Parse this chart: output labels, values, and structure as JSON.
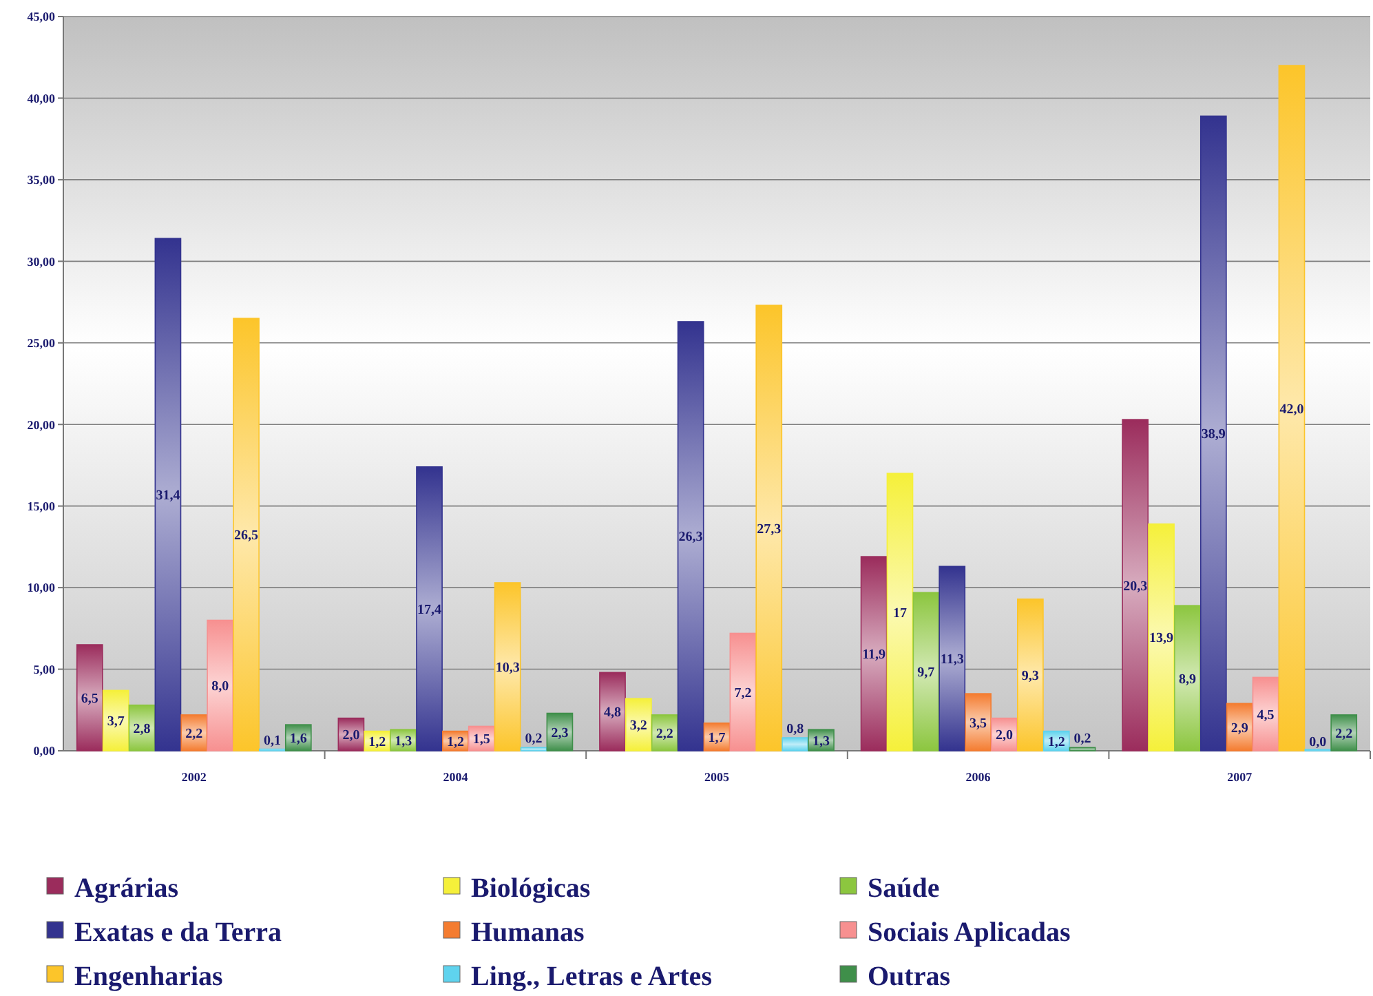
{
  "chart_data": {
    "type": "bar",
    "categories": [
      "2002",
      "2004",
      "2005",
      "2006",
      "2007"
    ],
    "ylim": [
      0,
      45
    ],
    "yticks": [
      {
        "value": 0,
        "label": "0,00"
      },
      {
        "value": 5,
        "label": "5,00"
      },
      {
        "value": 10,
        "label": "10,00"
      },
      {
        "value": 15,
        "label": "15,00"
      },
      {
        "value": 20,
        "label": "20,00"
      },
      {
        "value": 25,
        "label": "25,00"
      },
      {
        "value": 30,
        "label": "30,00"
      },
      {
        "value": 35,
        "label": "35,00"
      },
      {
        "value": 40,
        "label": "40,00"
      },
      {
        "value": 45,
        "label": "45,00"
      }
    ],
    "grid": "y",
    "legend": "bottom",
    "series": [
      {
        "name": "Agrárias",
        "color": "#9b2c5c",
        "values": [
          6.5,
          2.0,
          4.8,
          11.9,
          20.3
        ],
        "value_labels": [
          "6,5",
          "2,0",
          "4,8",
          "11,9",
          "20,3"
        ]
      },
      {
        "name": "Biológicas",
        "color": "#f5f03a",
        "values": [
          3.7,
          1.2,
          3.2,
          17,
          13.9
        ],
        "value_labels": [
          "3,7",
          "1,2",
          "3,2",
          "17",
          "13,9"
        ]
      },
      {
        "name": "Saúde",
        "color": "#8cc63f",
        "values": [
          2.8,
          1.3,
          2.2,
          9.7,
          8.9
        ],
        "value_labels": [
          "2,8",
          "1,3",
          "2,2",
          "9,7",
          "8,9"
        ]
      },
      {
        "name": "Exatas e da Terra",
        "color": "#33338f",
        "values": [
          31.4,
          17.4,
          26.3,
          11.3,
          38.9
        ],
        "value_labels": [
          "31,4",
          "17,4",
          "26,3",
          "11,3",
          "38,9"
        ]
      },
      {
        "name": "Humanas",
        "color": "#f47c30",
        "values": [
          2.2,
          1.2,
          1.7,
          3.5,
          2.9
        ],
        "value_labels": [
          "2,2",
          "1,2",
          "1,7",
          "3,5",
          "2,9"
        ]
      },
      {
        "name": "Sociais Aplicadas",
        "color": "#f79090",
        "values": [
          8.0,
          1.5,
          7.2,
          2.0,
          4.5
        ],
        "value_labels": [
          "8,0",
          "1,5",
          "7,2",
          "2,0",
          "4,5"
        ]
      },
      {
        "name": "Engenharias",
        "color": "#fcc52a",
        "values": [
          26.5,
          10.3,
          27.3,
          9.3,
          42.0
        ],
        "value_labels": [
          "26,5",
          "10,3",
          "27,3",
          "9,3",
          "42,0"
        ]
      },
      {
        "name": "Ling., Letras e Artes",
        "color": "#5fd3ee",
        "values": [
          0.1,
          0.2,
          0.8,
          1.2,
          0.0
        ],
        "value_labels": [
          "0,1",
          "0,2",
          "0,8",
          "1,2",
          "0,0"
        ]
      },
      {
        "name": "Outras",
        "color": "#3f8f4a",
        "values": [
          1.6,
          2.3,
          1.3,
          0.2,
          2.2
        ],
        "value_labels": [
          "1,6",
          "2,3",
          "1,3",
          "0,2",
          "2,2"
        ]
      }
    ]
  }
}
